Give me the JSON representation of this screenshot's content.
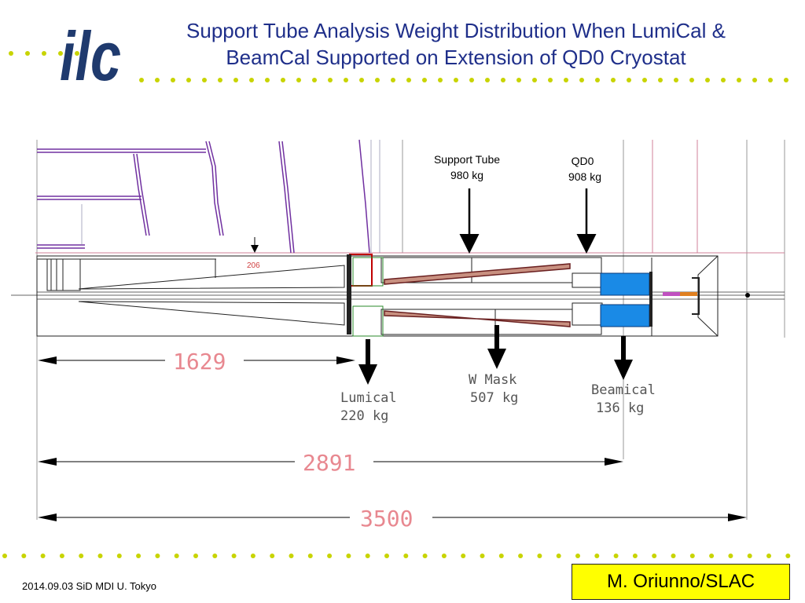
{
  "slide": {
    "title_line1": "Support Tube Analysis Weight Distribution When LumiCal &",
    "title_line2": "BeamCal Supported on Extension of QD0 Cryostat",
    "logo_text": "ilc",
    "footer_date": "2014.09.03 SiD MDI U. Tokyo",
    "author": "M. Oriunno/SLAC",
    "colors": {
      "title": "#1f2f8a",
      "dots": "#c8d400",
      "logo": "#1f3a6e",
      "author_bg": "#ffff00"
    }
  },
  "diagram": {
    "top_loads": {
      "support_tube": {
        "name": "Support Tube",
        "weight": "980 kg"
      },
      "qd0": {
        "name": "QD0",
        "weight": "908 kg"
      }
    },
    "bottom_loads": {
      "lumical": {
        "name": "Lumical",
        "weight": "220 kg"
      },
      "w_mask": {
        "name": "W Mask",
        "weight": "507 kg"
      },
      "beamcal": {
        "name": "Beamical",
        "weight": "136 kg"
      }
    },
    "dimensions": {
      "d1": "1629",
      "d2": "2891",
      "d3": "3500",
      "gap": "206"
    }
  }
}
